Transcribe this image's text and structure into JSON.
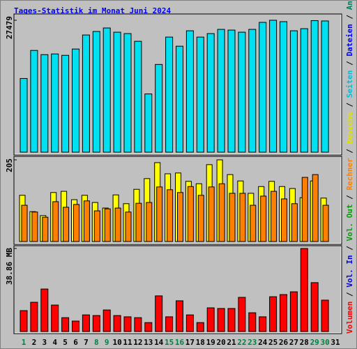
{
  "title": "Tages-Statistik im Monat Juni 2024",
  "legend_separator": " / ",
  "legend": [
    {
      "label": "Volumen",
      "color": "#ff0000"
    },
    {
      "label": "Vol. In",
      "color": "#0000ff"
    },
    {
      "label": "Vol. Out",
      "color": "#00a000"
    },
    {
      "label": "Rechner",
      "color": "#ff8000"
    },
    {
      "label": "Besuche",
      "color": "#e0e000"
    },
    {
      "label": "Seiten",
      "color": "#00c0e0"
    },
    {
      "label": "Dateien",
      "color": "#0000ff"
    },
    {
      "label": "Anfragen",
      "color": "#008060"
    }
  ],
  "chart_data": [
    {
      "type": "bar",
      "ylim": [
        0,
        27479
      ],
      "yticks": [
        27479
      ],
      "series": [
        {
          "color": "#00e0f0",
          "values": [
            15347,
            21194,
            20317,
            20463,
            20171,
            21486,
            24410,
            25140,
            25871,
            24994,
            24702,
            23094,
            12132,
            18271,
            23971,
            22071,
            25287,
            23971,
            24702,
            25579,
            25433,
            24994,
            25579,
            27040,
            27479,
            27187,
            25287,
            25725,
            27400,
            27333,
            null
          ]
        }
      ]
    },
    {
      "type": "bar",
      "ylim": [
        0,
        205
      ],
      "yticks": [
        205
      ],
      "series": [
        {
          "color": "#ffff00",
          "values": [
            116,
            75,
            65,
            123,
            126,
            105,
            116,
            98,
            84,
            117,
            95,
            131,
            158,
            198,
            170,
            172,
            151,
            145,
            193,
            205,
            168,
            152,
            121,
            138,
            151,
            138,
            133,
            110,
            152,
            109,
            null
          ]
        },
        {
          "color": "#ff8000",
          "values": [
            91,
            74,
            61,
            100,
            86,
            93,
            102,
            77,
            82,
            84,
            74,
            96,
            98,
            137,
            130,
            123,
            138,
            116,
            137,
            145,
            121,
            121,
            91,
            114,
            126,
            107,
            95,
            161,
            168,
            91,
            null
          ]
        }
      ]
    },
    {
      "type": "bar",
      "ylim": [
        0,
        38.86
      ],
      "yticks": [
        {
          "value": 38.86,
          "label": "38.86 MB"
        }
      ],
      "categories": [
        "1",
        "2",
        "3",
        "4",
        "5",
        "6",
        "7",
        "8",
        "9",
        "10",
        "11",
        "12",
        "13",
        "14",
        "15",
        "16",
        "17",
        "18",
        "19",
        "20",
        "21",
        "22",
        "23",
        "24",
        "25",
        "26",
        "27",
        "28",
        "29",
        "30",
        "31"
      ],
      "weekend": [
        true,
        false,
        false,
        false,
        false,
        false,
        false,
        true,
        true,
        false,
        false,
        false,
        false,
        false,
        true,
        true,
        false,
        false,
        false,
        false,
        false,
        true,
        true,
        false,
        false,
        false,
        false,
        false,
        true,
        true,
        false
      ],
      "weekend_color": "#008040",
      "weekday_color": "#000000",
      "series": [
        {
          "color": "#ff0000",
          "values": [
            9.8,
            13.7,
            19.9,
            12.4,
            6.5,
            4.9,
            7.8,
            7.5,
            10.1,
            7.5,
            6.9,
            6.5,
            4.2,
            16.7,
            6.9,
            14.4,
            7.8,
            4.2,
            11.1,
            10.8,
            10.8,
            16.0,
            8.8,
            6.9,
            16.3,
            17.3,
            18.6,
            38.86,
            22.9,
            14.7,
            null
          ]
        }
      ]
    }
  ]
}
